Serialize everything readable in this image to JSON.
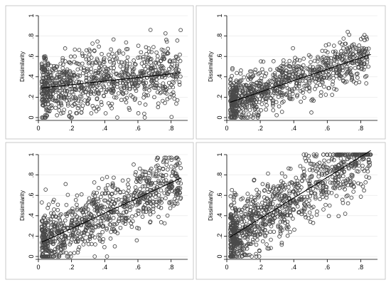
{
  "chart_data": [
    {
      "type": "scatter",
      "title": "",
      "xlabel": "",
      "ylabel": "Dissimilarity",
      "xlim": [
        0,
        0.9
      ],
      "ylim": [
        0,
        1
      ],
      "xticks": [
        0,
        0.2,
        0.4,
        0.6,
        0.8
      ],
      "xtick_labels": [
        "0",
        ".2",
        ".4",
        ".6",
        ".8"
      ],
      "yticks": [
        0,
        0.2,
        0.4,
        0.6,
        0.8,
        1
      ],
      "ytick_labels": [
        "0",
        ".2",
        ".4",
        ".6",
        ".8",
        "1"
      ],
      "grid": true,
      "fit_line": {
        "x": [
          0.02,
          0.86
        ],
        "y": [
          0.29,
          0.44
        ]
      },
      "point_cloud": {
        "n": 900,
        "x_range": [
          0.02,
          0.86
        ],
        "y_spread": 0.15,
        "y_range": [
          0.0,
          0.86
        ]
      }
    },
    {
      "type": "scatter",
      "title": "",
      "xlabel": "",
      "ylabel": "Dissimilarity",
      "xlim": [
        0,
        0.9
      ],
      "ylim": [
        0,
        1
      ],
      "xticks": [
        0,
        0.2,
        0.4,
        0.6,
        0.8
      ],
      "xtick_labels": [
        "0",
        ".2",
        ".4",
        ".6",
        ".8"
      ],
      "yticks": [
        0,
        0.2,
        0.4,
        0.6,
        0.8,
        1
      ],
      "ytick_labels": [
        "0",
        ".2",
        ".4",
        ".6",
        ".8",
        "1"
      ],
      "grid": true,
      "fit_line": {
        "x": [
          0.02,
          0.86
        ],
        "y": [
          0.15,
          0.62
        ]
      },
      "point_cloud": {
        "n": 900,
        "x_range": [
          0.02,
          0.85
        ],
        "y_spread": 0.11,
        "y_range": [
          0.0,
          0.88
        ]
      }
    },
    {
      "type": "scatter",
      "title": "",
      "xlabel": "",
      "ylabel": "Dissimilarity",
      "xlim": [
        0,
        0.9
      ],
      "ylim": [
        0,
        1
      ],
      "xticks": [
        0,
        0.2,
        0.4,
        0.6,
        0.8
      ],
      "xtick_labels": [
        "0",
        ".2",
        ".4",
        ".6",
        ".8"
      ],
      "yticks": [
        0,
        0.2,
        0.4,
        0.6,
        0.8,
        1
      ],
      "ytick_labels": [
        "0",
        ".2",
        ".4",
        ".6",
        ".8",
        "1"
      ],
      "grid": true,
      "fit_line": {
        "x": [
          0.02,
          0.86
        ],
        "y": [
          0.14,
          0.77
        ]
      },
      "point_cloud": {
        "n": 900,
        "x_range": [
          0.02,
          0.86
        ],
        "y_spread": 0.14,
        "y_range": [
          0.0,
          0.97
        ]
      }
    },
    {
      "type": "scatter",
      "title": "",
      "xlabel": "",
      "ylabel": "Dissimilarity",
      "xlim": [
        0,
        0.9
      ],
      "ylim": [
        0,
        1
      ],
      "xticks": [
        0,
        0.2,
        0.4,
        0.6,
        0.8
      ],
      "xtick_labels": [
        "0",
        ".2",
        ".4",
        ".6",
        ".8"
      ],
      "yticks": [
        0,
        0.2,
        0.4,
        0.6,
        0.8,
        1
      ],
      "ytick_labels": [
        "0",
        ".2",
        ".4",
        ".6",
        ".8",
        "1"
      ],
      "grid": true,
      "fit_line": {
        "x": [
          0.02,
          0.86
        ],
        "y": [
          0.19,
          1.04
        ]
      },
      "point_cloud": {
        "n": 1000,
        "x_range": [
          0.02,
          0.86
        ],
        "y_spread": 0.16,
        "y_range": [
          0.0,
          1.0
        ]
      }
    }
  ],
  "colors": {
    "marker": "#4a4a4a",
    "fit_line": "#000000",
    "grid": "#e6e6e6",
    "background": "#ffffff"
  }
}
